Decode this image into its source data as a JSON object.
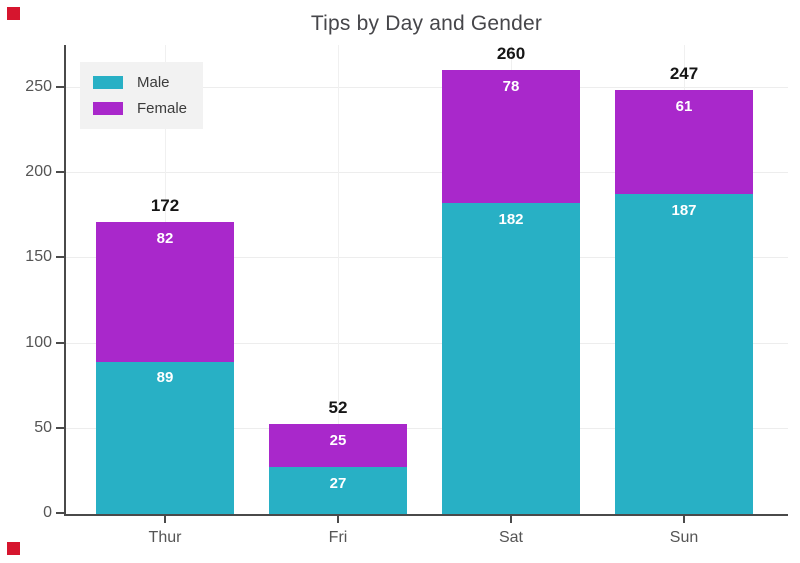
{
  "title": "Tips by Day and Gender",
  "markers": {
    "color": "#d6152e"
  },
  "chart_data": {
    "type": "bar",
    "stacked": true,
    "title": "Tips by Day and Gender",
    "xlabel": "",
    "ylabel": "",
    "categories": [
      "Thur",
      "Fri",
      "Sat",
      "Sun"
    ],
    "series": [
      {
        "name": "Male",
        "color": "#28b0c5",
        "values": [
          89,
          27,
          182,
          187
        ]
      },
      {
        "name": "Female",
        "color": "#a928cb",
        "values": [
          82,
          25,
          78,
          61
        ]
      }
    ],
    "totals": [
      172,
      52,
      260,
      247
    ],
    "ylim": [
      0,
      270
    ],
    "yticks": [
      0,
      50,
      100,
      150,
      200,
      250
    ],
    "grid": true,
    "legend_position": "top-left",
    "label_color_inside": "#ffffff",
    "label_color_total": "#161616"
  }
}
